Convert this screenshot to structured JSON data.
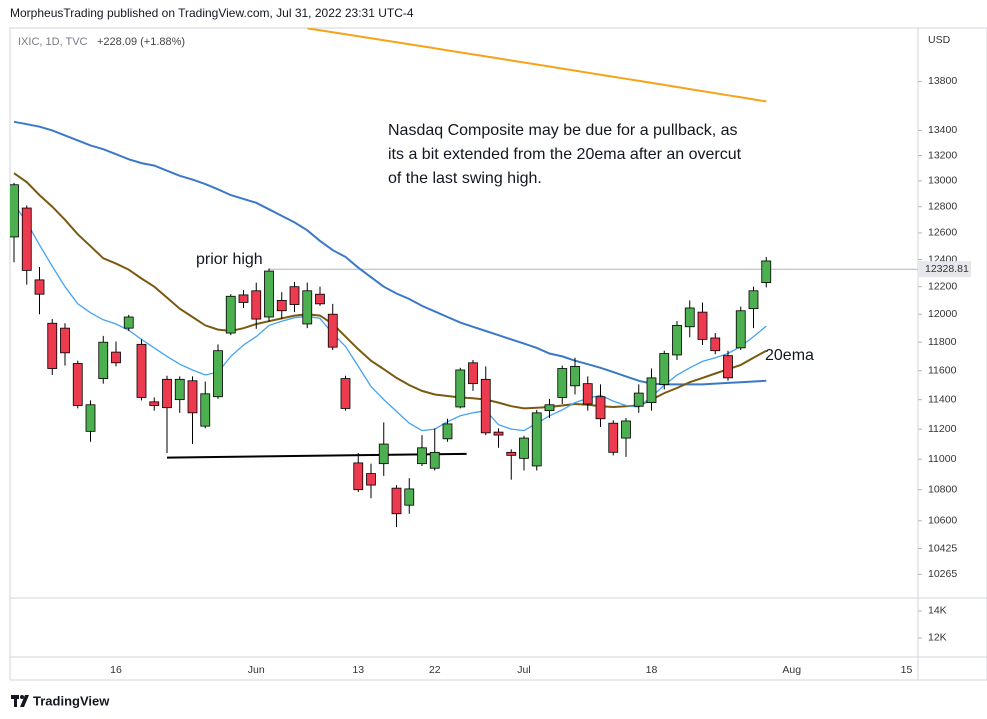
{
  "chart_data": {
    "type": "candlestick",
    "header": "MorpheusTrading published on TradingView.com, Jul 31, 2022 23:31 UTC-4",
    "symbol": "IXIC, 1D, TVC",
    "change": "+228.09 (+1.88%)",
    "currency": "USD",
    "brand": "TradingView",
    "log_scale": true,
    "grid": false,
    "up_color": "#4caf50",
    "down_color": "#ec3a4f",
    "categories": [
      null,
      null,
      null,
      null,
      null,
      null,
      null,
      null,
      "16",
      null,
      null,
      null,
      null,
      null,
      null,
      null,
      null,
      null,
      null,
      "Jun",
      null,
      null,
      null,
      null,
      null,
      null,
      null,
      "13",
      null,
      null,
      null,
      null,
      null,
      "22",
      null,
      null,
      null,
      null,
      null,
      null,
      "Jul",
      null,
      null,
      null,
      null,
      null,
      null,
      null,
      null,
      null,
      "18",
      null,
      null,
      null,
      null,
      null,
      null,
      null,
      null,
      null,
      null,
      "Aug",
      null,
      null,
      null,
      null,
      null,
      null,
      null,
      null,
      "15"
    ],
    "open": [
      12570,
      12790,
      12250,
      11935,
      11900,
      11650,
      11185,
      11545,
      11730,
      11900,
      11785,
      11385,
      11540,
      11400,
      11530,
      11220,
      11420,
      11865,
      12140,
      12170,
      11980,
      12100,
      12200,
      11930,
      12145,
      12000,
      11545,
      10975,
      10905,
      10970,
      10810,
      10700,
      10970,
      10940,
      11135,
      11350,
      11655,
      11540,
      11180,
      11045,
      11005,
      10955,
      11325,
      11415,
      11495,
      11510,
      11420,
      11240,
      11140,
      11355,
      11380,
      11505,
      11710,
      11910,
      12015,
      11830,
      11705,
      11760,
      12040,
      12230,
      null,
      null,
      null,
      null,
      null,
      null,
      null,
      null,
      null,
      null,
      null
    ],
    "high": [
      12985,
      12810,
      12345,
      11965,
      11935,
      11670,
      11395,
      11845,
      11805,
      11995,
      11820,
      11415,
      11565,
      11560,
      11560,
      11525,
      11785,
      12145,
      12175,
      12230,
      12335,
      12160,
      12235,
      12230,
      12200,
      12075,
      11565,
      11040,
      10970,
      11245,
      10830,
      10875,
      11160,
      11205,
      11270,
      11620,
      11675,
      11630,
      11205,
      11065,
      11155,
      11330,
      11405,
      11635,
      11690,
      11560,
      11505,
      11260,
      11275,
      11505,
      11615,
      11740,
      11950,
      12100,
      12085,
      11865,
      11740,
      12055,
      12200,
      12420,
      null,
      null,
      null,
      null,
      null,
      null,
      null,
      null,
      null,
      null,
      null
    ],
    "low": [
      12380,
      12215,
      12000,
      11570,
      11635,
      11340,
      11115,
      11510,
      11630,
      11880,
      11395,
      11325,
      11040,
      11310,
      11100,
      11205,
      11405,
      11850,
      12045,
      11895,
      11945,
      11965,
      12015,
      11900,
      12060,
      11745,
      11325,
      10785,
      10745,
      10890,
      10560,
      10645,
      10955,
      10925,
      11115,
      11340,
      11460,
      11160,
      11075,
      10865,
      10925,
      10925,
      11275,
      11370,
      11435,
      11325,
      11215,
      11025,
      11015,
      11310,
      11325,
      11470,
      11675,
      11835,
      11780,
      11715,
      11530,
      11745,
      11900,
      12195,
      null,
      null,
      null,
      null,
      null,
      null,
      null,
      null,
      null,
      null,
      null
    ],
    "close": [
      12970,
      12320,
      12145,
      11615,
      11725,
      11360,
      11365,
      11800,
      11655,
      11980,
      11415,
      11360,
      11345,
      11540,
      11310,
      11440,
      11740,
      12130,
      12085,
      11965,
      12315,
      12025,
      12070,
      12170,
      12075,
      11765,
      11340,
      10800,
      10830,
      11100,
      10645,
      10805,
      11075,
      11045,
      11235,
      11605,
      11510,
      11175,
      11160,
      11025,
      11140,
      11310,
      11365,
      11615,
      11630,
      11370,
      11270,
      11045,
      11255,
      11445,
      11550,
      11720,
      11920,
      12045,
      11820,
      11740,
      11550,
      12025,
      12170,
      12390,
      null,
      null,
      null,
      null,
      null,
      null,
      null,
      null,
      null,
      null,
      null
    ],
    "overlays": [
      {
        "color": "#f7a21b",
        "values": [
          null,
          null,
          null,
          null,
          null,
          null,
          null,
          null,
          null,
          null,
          null,
          null,
          null,
          null,
          null,
          null,
          null,
          null,
          null,
          null,
          null,
          null,
          null,
          14247,
          14230,
          14213,
          14196,
          14179,
          14162,
          14145,
          14128,
          14111,
          14094,
          14077,
          14060,
          14043,
          14026,
          14009,
          13992,
          13975,
          13958,
          13941,
          13924,
          13907,
          13890,
          13873,
          13856,
          13839,
          13822,
          13805,
          13788,
          13771,
          13754,
          13737,
          13720,
          13703,
          13686,
          13669,
          13652,
          13635,
          null,
          null,
          null,
          null,
          null,
          null,
          null,
          null,
          null,
          null,
          null
        ]
      },
      {
        "color": "#3c78c8",
        "values": [
          13470,
          13450,
          13430,
          13400,
          13360,
          13320,
          13280,
          13250,
          13210,
          13170,
          13140,
          13120,
          13080,
          13040,
          13010,
          12975,
          12935,
          12890,
          12860,
          12830,
          12780,
          12730,
          12680,
          12620,
          12540,
          12470,
          12420,
          12340,
          12270,
          12200,
          12150,
          12110,
          12060,
          12020,
          11980,
          11940,
          11910,
          11880,
          11850,
          11820,
          11790,
          11760,
          11720,
          11700,
          11670,
          11645,
          11620,
          11590,
          11560,
          11530,
          11510,
          11505,
          11505,
          11505,
          11505,
          11510,
          11515,
          11520,
          11525,
          11530,
          null,
          null,
          null,
          null,
          null,
          null,
          null,
          null,
          null,
          null,
          null
        ]
      },
      {
        "color": "#7a5a10",
        "values": [
          13060,
          12990,
          12890,
          12800,
          12700,
          12590,
          12500,
          12410,
          12370,
          12325,
          12260,
          12200,
          12120,
          12040,
          11980,
          11920,
          11890,
          11880,
          11900,
          11930,
          11950,
          11970,
          11990,
          12000,
          11990,
          11930,
          11840,
          11750,
          11670,
          11610,
          11550,
          11500,
          11460,
          11435,
          11425,
          11415,
          11410,
          11400,
          11380,
          11355,
          11340,
          11345,
          11350,
          11360,
          11370,
          11365,
          11355,
          11350,
          11355,
          11360,
          11400,
          11445,
          11480,
          11520,
          11550,
          11580,
          11610,
          11640,
          11690,
          11740,
          null,
          null,
          null,
          null,
          null,
          null,
          null,
          null,
          null,
          null,
          null
        ]
      },
      {
        "color": "#46a3f0",
        "values": [
          12820,
          12680,
          12510,
          12350,
          12200,
          12075,
          12010,
          11960,
          11930,
          11885,
          11820,
          11760,
          11700,
          11645,
          11605,
          11570,
          11590,
          11700,
          11780,
          11840,
          11920,
          11950,
          11975,
          11985,
          11970,
          11860,
          11770,
          11630,
          11490,
          11400,
          11320,
          11240,
          11190,
          11200,
          11250,
          11290,
          11310,
          11325,
          11230,
          11200,
          11190,
          11240,
          11290,
          11330,
          11380,
          11410,
          11430,
          11390,
          11360,
          11350,
          11420,
          11500,
          11570,
          11620,
          11665,
          11690,
          11720,
          11770,
          11840,
          11915,
          null,
          null,
          null,
          null,
          null,
          null,
          null,
          null,
          null,
          null,
          null
        ]
      }
    ],
    "hline": {
      "value": 12328.81,
      "from": 20,
      "color": "#b2b5be"
    },
    "support_line": {
      "x": [
        12,
        35.5
      ],
      "values": [
        11010,
        11035
      ],
      "color": "#000000"
    },
    "prior_high_label": "prior high",
    "ema_label": "20ema",
    "note": [
      "Nasdaq Composite may be due for a pullback, as",
      "its a bit extended from the 20ema after an overcut",
      "of the last swing high."
    ],
    "ylim": [
      10120,
      14250
    ],
    "yticks": [
      10265,
      10425,
      10600,
      10800,
      11000,
      11200,
      11400,
      11600,
      11800,
      12000,
      12200,
      12400,
      12600,
      12800,
      13000,
      13200,
      13400,
      13800
    ],
    "volume_ylim": [
      10590,
      14810
    ],
    "volume_ticks": [
      {
        "value": 14000,
        "label": "14K"
      },
      {
        "value": 12000,
        "label": "12K"
      }
    ]
  }
}
